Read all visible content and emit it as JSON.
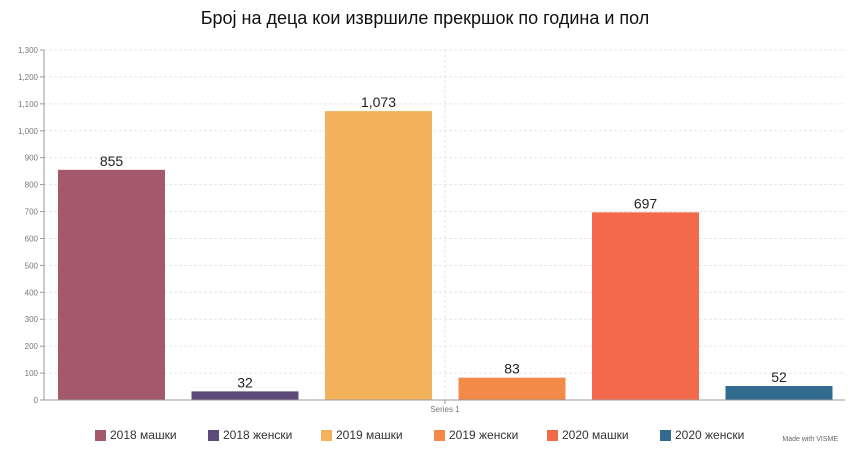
{
  "chart_data": {
    "type": "bar",
    "title": "Број на деца кои извршиле прекршок по година и пол",
    "categories": [
      "Series 1"
    ],
    "series": [
      {
        "name": "2018 машки",
        "values": [
          855
        ],
        "color": "#a3586b"
      },
      {
        "name": "2018 женски",
        "values": [
          32
        ],
        "color": "#5c4a78"
      },
      {
        "name": "2019 машки",
        "values": [
          1073
        ],
        "color": "#f2b15a"
      },
      {
        "name": "2019 женски",
        "values": [
          83
        ],
        "color": "#f38a48"
      },
      {
        "name": "2020 машки",
        "values": [
          697
        ],
        "color": "#f26a4b"
      },
      {
        "name": "2020 женски",
        "values": [
          52
        ],
        "color": "#336b8e"
      }
    ],
    "data_labels": [
      "855",
      "32",
      "1,073",
      "83",
      "697",
      "52"
    ],
    "ylim": [
      0,
      1300
    ],
    "yticks": [
      "0",
      "100",
      "200",
      "300",
      "400",
      "500",
      "600",
      "700",
      "800",
      "900",
      "1,000",
      "1,100",
      "1,200",
      "1,300"
    ],
    "grid": true,
    "legend": "bottom"
  },
  "footer": "Made with VISME"
}
